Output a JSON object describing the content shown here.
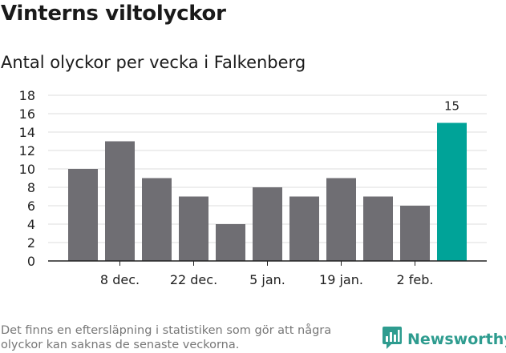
{
  "header": {
    "title": "Vinterns viltolyckor",
    "subtitle": "Antal olyckor per vecka i Falkenberg"
  },
  "footer": {
    "note": "Det finns en eftersläpning i statistiken som gör att några olyckor kan saknas de senaste veckorna.",
    "brand": "Newsworthy",
    "brand_icon": "chat-bubble-bar-chart-icon"
  },
  "colors": {
    "bar": "#6f6e73",
    "highlight": "#00a398",
    "grid": "#dcdcdc",
    "axis": "#222222",
    "brand": "#2e9c8f"
  },
  "chart_data": {
    "type": "bar",
    "values": [
      10,
      13,
      9,
      7,
      4,
      8,
      7,
      9,
      7,
      6,
      15
    ],
    "highlight_index": 10,
    "data_labels": [
      {
        "index": 10,
        "text": "15"
      }
    ],
    "x_tick_labels": [
      {
        "index": 1,
        "label": "8 dec."
      },
      {
        "index": 3,
        "label": "22 dec."
      },
      {
        "index": 5,
        "label": "5 jan."
      },
      {
        "index": 7,
        "label": "19 jan."
      },
      {
        "index": 9,
        "label": "2 feb."
      }
    ],
    "y_ticks": [
      0,
      2,
      4,
      6,
      8,
      10,
      12,
      14,
      16,
      18
    ],
    "ylim": [
      0,
      18
    ],
    "grid": true,
    "legend": false
  }
}
